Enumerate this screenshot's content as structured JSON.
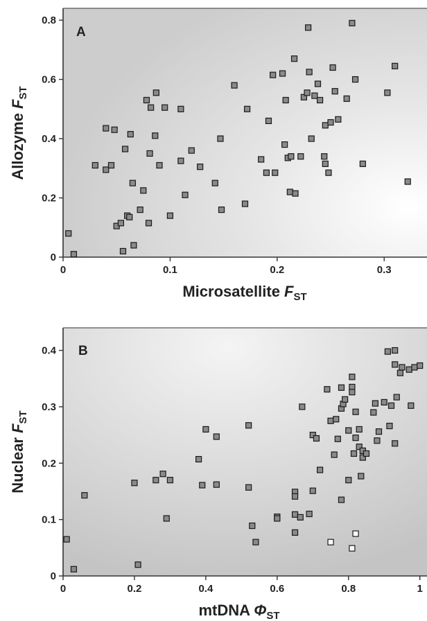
{
  "chart_data": [
    {
      "type": "scatter",
      "panel_label": "A",
      "xlabel": {
        "main": "Microsatellite ",
        "symbol": "F",
        "sub": "ST"
      },
      "ylabel": {
        "main": "Allozyme ",
        "symbol": "F",
        "sub": "ST"
      },
      "xlim": [
        0,
        0.34
      ],
      "ylim": [
        0,
        0.84
      ],
      "xticks": [
        0,
        0.1,
        0.2,
        0.3
      ],
      "xtick_labels": [
        "0",
        "0.1",
        "0.2",
        "0.3"
      ],
      "yticks": [
        0,
        0.2,
        0.4,
        0.6,
        0.8
      ],
      "ytick_labels": [
        "0",
        "0.2",
        "0.4",
        "0.6",
        "0.8"
      ],
      "grid": false,
      "marker_color": "#8a8a8a",
      "series": [
        {
          "points": [
            [
              0.005,
              0.08
            ],
            [
              0.01,
              0.01
            ],
            [
              0.03,
              0.31
            ],
            [
              0.04,
              0.295
            ],
            [
              0.04,
              0.435
            ],
            [
              0.045,
              0.31
            ],
            [
              0.048,
              0.43
            ],
            [
              0.05,
              0.105
            ],
            [
              0.054,
              0.115
            ],
            [
              0.056,
              0.02
            ],
            [
              0.058,
              0.365
            ],
            [
              0.06,
              0.14
            ],
            [
              0.062,
              0.135
            ],
            [
              0.063,
              0.415
            ],
            [
              0.065,
              0.25
            ],
            [
              0.066,
              0.04
            ],
            [
              0.072,
              0.16
            ],
            [
              0.075,
              0.225
            ],
            [
              0.078,
              0.53
            ],
            [
              0.08,
              0.115
            ],
            [
              0.081,
              0.35
            ],
            [
              0.082,
              0.505
            ],
            [
              0.086,
              0.41
            ],
            [
              0.087,
              0.555
            ],
            [
              0.09,
              0.31
            ],
            [
              0.095,
              0.505
            ],
            [
              0.1,
              0.14
            ],
            [
              0.11,
              0.325
            ],
            [
              0.11,
              0.5
            ],
            [
              0.114,
              0.21
            ],
            [
              0.12,
              0.36
            ],
            [
              0.128,
              0.305
            ],
            [
              0.142,
              0.25
            ],
            [
              0.147,
              0.4
            ],
            [
              0.148,
              0.16
            ],
            [
              0.16,
              0.58
            ],
            [
              0.17,
              0.18
            ],
            [
              0.172,
              0.5
            ],
            [
              0.185,
              0.33
            ],
            [
              0.19,
              0.285
            ],
            [
              0.192,
              0.46
            ],
            [
              0.196,
              0.615
            ],
            [
              0.198,
              0.285
            ],
            [
              0.205,
              0.62
            ],
            [
              0.207,
              0.38
            ],
            [
              0.208,
              0.53
            ],
            [
              0.21,
              0.335
            ],
            [
              0.212,
              0.22
            ],
            [
              0.213,
              0.34
            ],
            [
              0.216,
              0.67
            ],
            [
              0.217,
              0.215
            ],
            [
              0.222,
              0.34
            ],
            [
              0.225,
              0.54
            ],
            [
              0.228,
              0.555
            ],
            [
              0.229,
              0.775
            ],
            [
              0.23,
              0.625
            ],
            [
              0.232,
              0.4
            ],
            [
              0.235,
              0.545
            ],
            [
              0.238,
              0.585
            ],
            [
              0.24,
              0.53
            ],
            [
              0.244,
              0.34
            ],
            [
              0.245,
              0.445
            ],
            [
              0.245,
              0.315
            ],
            [
              0.248,
              0.285
            ],
            [
              0.25,
              0.455
            ],
            [
              0.252,
              0.64
            ],
            [
              0.254,
              0.56
            ],
            [
              0.257,
              0.465
            ],
            [
              0.265,
              0.535
            ],
            [
              0.27,
              0.79
            ],
            [
              0.273,
              0.6
            ],
            [
              0.28,
              0.315
            ],
            [
              0.303,
              0.555
            ],
            [
              0.31,
              0.645
            ],
            [
              0.322,
              0.255
            ]
          ]
        }
      ]
    },
    {
      "type": "scatter",
      "panel_label": "B",
      "xlabel": {
        "main": "mtDNA ",
        "symbol": "Φ",
        "sub": "ST"
      },
      "ylabel": {
        "main": "Nuclear ",
        "symbol": "F",
        "sub": "ST"
      },
      "xlim": [
        0,
        1.02
      ],
      "ylim": [
        0,
        0.44
      ],
      "xticks": [
        0,
        0.2,
        0.4,
        0.6,
        0.8,
        1.0
      ],
      "xtick_labels": [
        "0",
        "0.2",
        "0.4",
        "0.6",
        "0.8",
        "1"
      ],
      "yticks": [
        0,
        0.1,
        0.2,
        0.3,
        0.4
      ],
      "ytick_labels": [
        "0",
        "0.1",
        "0.2",
        "0.3",
        "0.4"
      ],
      "grid": false,
      "series": [
        {
          "style": "filled",
          "marker_color": "#8a8a8a",
          "points": [
            [
              0.01,
              0.065
            ],
            [
              0.03,
              0.012
            ],
            [
              0.06,
              0.143
            ],
            [
              0.2,
              0.165
            ],
            [
              0.21,
              0.02
            ],
            [
              0.26,
              0.17
            ],
            [
              0.28,
              0.181
            ],
            [
              0.29,
              0.102
            ],
            [
              0.3,
              0.17
            ],
            [
              0.38,
              0.207
            ],
            [
              0.39,
              0.161
            ],
            [
              0.4,
              0.26
            ],
            [
              0.43,
              0.247
            ],
            [
              0.43,
              0.162
            ],
            [
              0.52,
              0.267
            ],
            [
              0.52,
              0.157
            ],
            [
              0.53,
              0.089
            ],
            [
              0.54,
              0.06
            ],
            [
              0.6,
              0.105
            ],
            [
              0.6,
              0.102
            ],
            [
              0.65,
              0.149
            ],
            [
              0.65,
              0.141
            ],
            [
              0.65,
              0.109
            ],
            [
              0.65,
              0.077
            ],
            [
              0.665,
              0.104
            ],
            [
              0.67,
              0.3
            ],
            [
              0.69,
              0.11
            ],
            [
              0.7,
              0.151
            ],
            [
              0.7,
              0.25
            ],
            [
              0.71,
              0.244
            ],
            [
              0.72,
              0.188
            ],
            [
              0.74,
              0.331
            ],
            [
              0.75,
              0.275
            ],
            [
              0.76,
              0.215
            ],
            [
              0.765,
              0.278
            ],
            [
              0.77,
              0.243
            ],
            [
              0.78,
              0.297
            ],
            [
              0.78,
              0.334
            ],
            [
              0.78,
              0.135
            ],
            [
              0.785,
              0.305
            ],
            [
              0.79,
              0.313
            ],
            [
              0.8,
              0.258
            ],
            [
              0.8,
              0.17
            ],
            [
              0.81,
              0.353
            ],
            [
              0.81,
              0.335
            ],
            [
              0.81,
              0.326
            ],
            [
              0.815,
              0.217
            ],
            [
              0.82,
              0.291
            ],
            [
              0.82,
              0.245
            ],
            [
              0.83,
              0.229
            ],
            [
              0.83,
              0.26
            ],
            [
              0.835,
              0.177
            ],
            [
              0.84,
              0.222
            ],
            [
              0.84,
              0.21
            ],
            [
              0.85,
              0.217
            ],
            [
              0.87,
              0.29
            ],
            [
              0.875,
              0.306
            ],
            [
              0.88,
              0.24
            ],
            [
              0.885,
              0.256
            ],
            [
              0.9,
              0.308
            ],
            [
              0.91,
              0.398
            ],
            [
              0.915,
              0.266
            ],
            [
              0.92,
              0.302
            ],
            [
              0.93,
              0.4
            ],
            [
              0.93,
              0.375
            ],
            [
              0.93,
              0.235
            ],
            [
              0.935,
              0.317
            ],
            [
              0.945,
              0.36
            ],
            [
              0.95,
              0.37
            ],
            [
              0.97,
              0.366
            ],
            [
              0.975,
              0.302
            ],
            [
              0.985,
              0.37
            ],
            [
              1.0,
              0.373
            ]
          ]
        },
        {
          "style": "hollow",
          "marker_color": "#ffffff",
          "points": [
            [
              0.75,
              0.06
            ],
            [
              0.81,
              0.049
            ],
            [
              0.82,
              0.075
            ]
          ]
        }
      ]
    }
  ]
}
